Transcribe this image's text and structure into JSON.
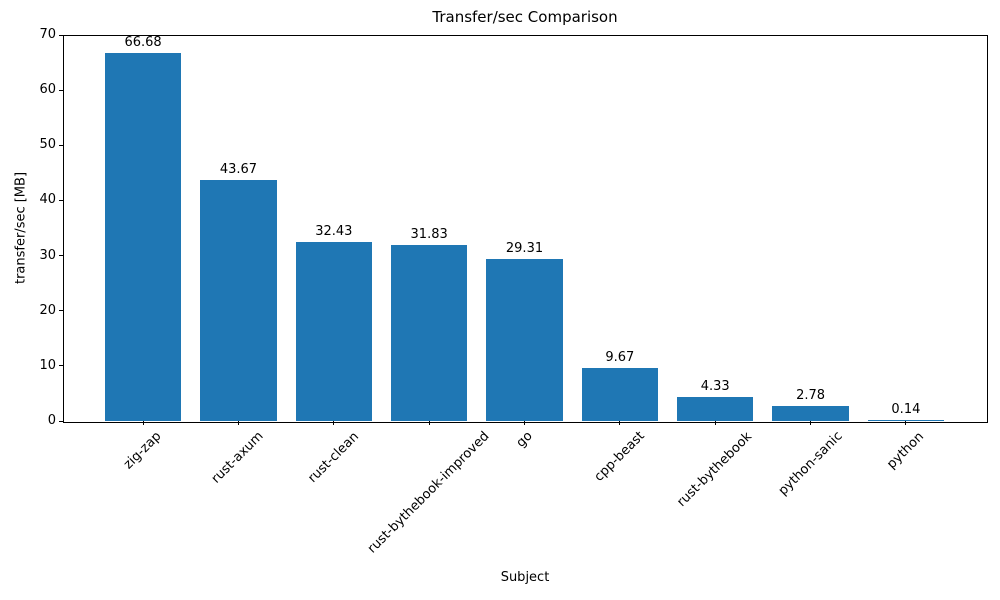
{
  "chart_data": {
    "type": "bar",
    "title": "Transfer/sec Comparison",
    "xlabel": "Subject",
    "ylabel": "transfer/sec [MB]",
    "categories": [
      "zig-zap",
      "rust-axum",
      "rust-clean",
      "rust-bythebook-improved",
      "go",
      "cpp-beast",
      "rust-bythebook",
      "python-sanic",
      "python"
    ],
    "values": [
      66.68,
      43.67,
      32.43,
      31.83,
      29.31,
      9.67,
      4.33,
      2.78,
      0.14
    ],
    "value_labels": [
      "66.68",
      "43.67",
      "32.43",
      "31.83",
      "29.31",
      "9.67",
      "4.33",
      "2.78",
      "0.14"
    ],
    "ylim": [
      0,
      70
    ],
    "yticks": [
      0,
      10,
      20,
      30,
      40,
      50,
      60,
      70
    ],
    "x_tick_rotation_deg": 45,
    "grid": false,
    "legend": null,
    "bar_color": "#1f77b4",
    "background_color": "#ffffff",
    "text_color": "#000000"
  }
}
